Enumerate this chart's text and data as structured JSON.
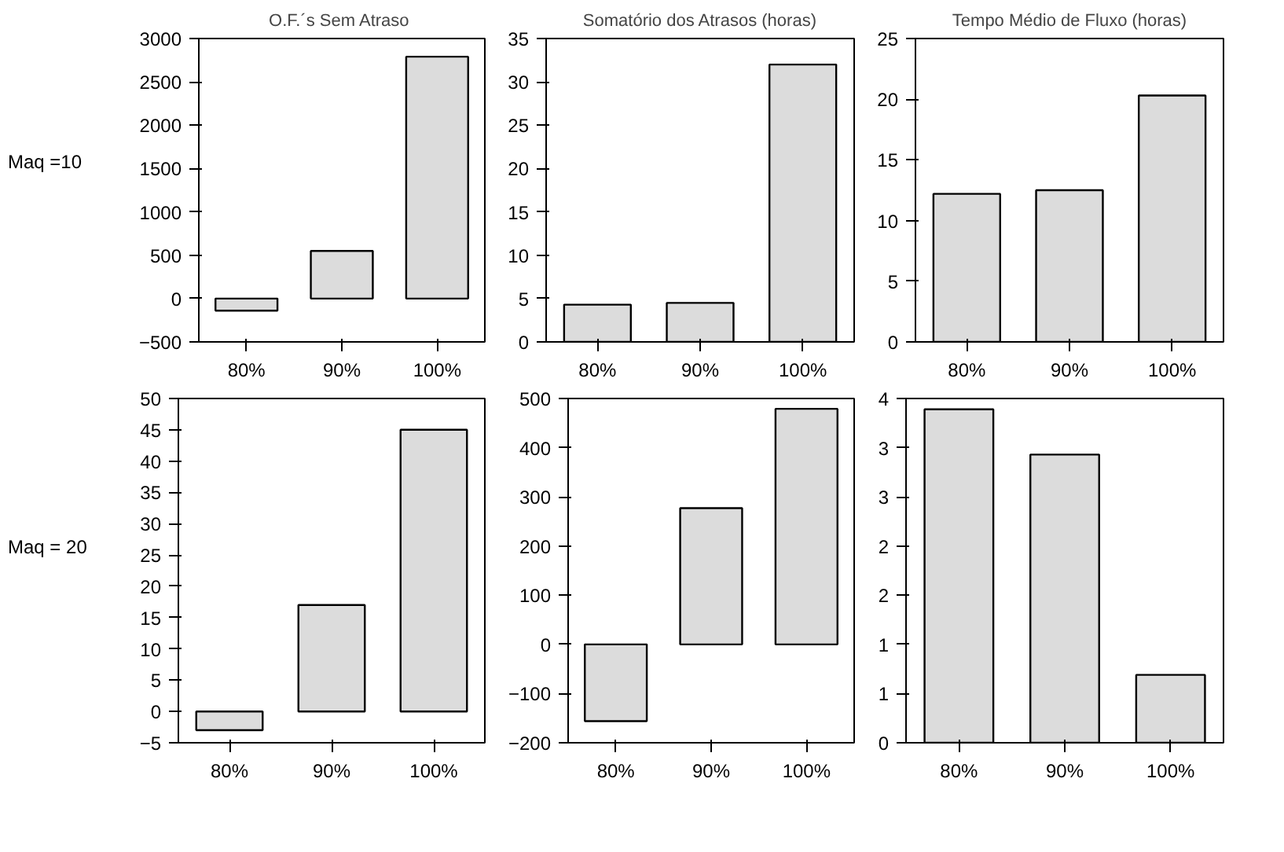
{
  "chart_data": [
    {
      "type": "bar",
      "title": "O.F.´s  Sem Atraso",
      "annotations": [
        "Maq =10"
      ],
      "categories": [
        "80%",
        "90%",
        "100%"
      ],
      "values": [
        -140,
        550,
        2790
      ],
      "color": "#dcdcdc",
      "ylim": [
        -500,
        3000
      ],
      "yticks": [
        -500,
        0,
        500,
        1000,
        1500,
        2000,
        2500,
        3000
      ],
      "grid": false
    },
    {
      "type": "bar",
      "title": "Somatório dos Atrasos (horas)",
      "categories": [
        "80%",
        "90%",
        "100%"
      ],
      "values": [
        4.3,
        4.5,
        32
      ],
      "color": "#dcdcdc",
      "ylim": [
        0,
        35
      ],
      "yticks": [
        0,
        5,
        10,
        15,
        20,
        25,
        30,
        35
      ],
      "grid": false
    },
    {
      "type": "bar",
      "title": "Tempo Médio de Fluxo (horas)",
      "categories": [
        "80%",
        "90%",
        "100%"
      ],
      "values": [
        12.2,
        12.5,
        20.3
      ],
      "color": "#dcdcdc",
      "ylim": [
        0,
        25
      ],
      "yticks": [
        0,
        5,
        10,
        15,
        20,
        25
      ],
      "grid": false
    },
    {
      "type": "bar",
      "annotations": [
        "Maq = 20"
      ],
      "categories": [
        "80%",
        "90%",
        "100%"
      ],
      "values": [
        -3,
        17,
        45
      ],
      "color": "#dcdcdc",
      "ylim": [
        -5,
        50
      ],
      "yticks": [
        -5,
        0,
        5,
        10,
        15,
        20,
        25,
        30,
        35,
        40,
        45,
        50
      ],
      "grid": false
    },
    {
      "type": "bar",
      "categories": [
        "80%",
        "90%",
        "100%"
      ],
      "values": [
        -156,
        277,
        479
      ],
      "color": "#dcdcdc",
      "ylim": [
        -200,
        500
      ],
      "yticks": [
        -200,
        -100,
        0,
        100,
        200,
        300,
        400,
        500
      ],
      "grid": false
    },
    {
      "type": "bar",
      "categories": [
        "80%",
        "90%",
        "100%"
      ],
      "values": [
        3.39,
        2.93,
        0.69
      ],
      "color": "#dcdcdc",
      "ylim": [
        0,
        3.5
      ],
      "yticks": [
        0,
        {
          "value": 0.5,
          "label": "1"
        },
        {
          "value": 1,
          "label": "1"
        },
        {
          "value": 1.5,
          "label": "2"
        },
        {
          "value": 2,
          "label": "2"
        },
        {
          "value": 2.5,
          "label": "3"
        },
        {
          "value": 3,
          "label": "3"
        },
        {
          "value": 3.5,
          "label": "4"
        }
      ],
      "grid": false
    }
  ]
}
